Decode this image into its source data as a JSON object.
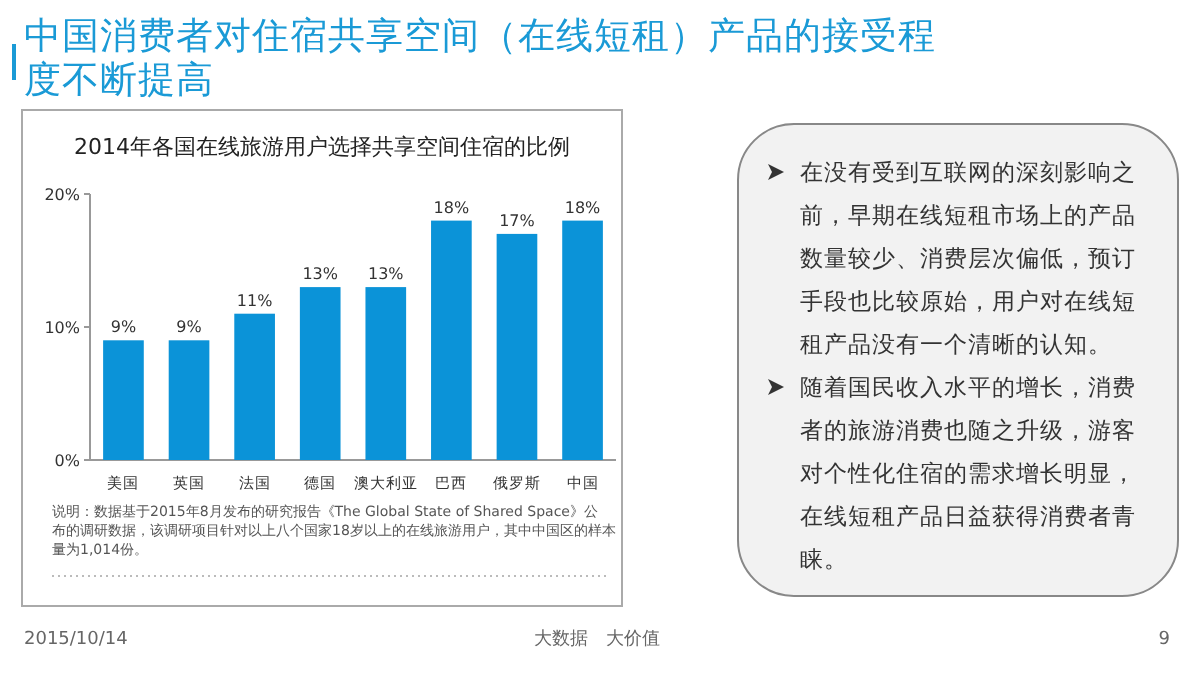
{
  "chart_data": {
    "type": "bar",
    "title": "2014年各国在线旅游用户选择共享空间住宿的比例",
    "categories": [
      "美国",
      "英国",
      "法国",
      "德国",
      "澳大利亚",
      "巴西",
      "俄罗斯",
      "中国"
    ],
    "values": [
      9,
      9,
      11,
      13,
      13,
      18,
      17,
      18
    ],
    "value_labels": [
      "9%",
      "9%",
      "11%",
      "13%",
      "13%",
      "18%",
      "17%",
      "18%"
    ],
    "color": "#0b93d8",
    "ylim": [
      0,
      20
    ],
    "yticks": [
      {
        "value": 0,
        "label": "0%"
      },
      {
        "value": 10,
        "label": "10%"
      },
      {
        "value": 20,
        "label": "20%"
      }
    ],
    "grid": false,
    "annotations": [
      "中国消费者对住宿共享空间（在线短租）产品的接受程度不断提高",
      "说明：数据基于2015年8月发布的研究报告《The Global State of Shared Space》公布的调研数据，该调研项目针对以上八个国家18岁以上的在线旅游用户，其中中国区的样本量为1,014份。",
      "在没有受到互联网的深刻影响之前，早期在线短租市场上的产品数量较少、消费层次偏低，预订手段也比较原始，用户对在线短租产品没有一个清晰的认知。",
      "随着国民收入水平的增长，消费者的旅游消费也随之升级，游客对个性化住宿的需求增长明显，在线短租产品日益获得消费者青睐。",
      "2015/10/14",
      "大数据　大价值",
      "9"
    ]
  }
}
